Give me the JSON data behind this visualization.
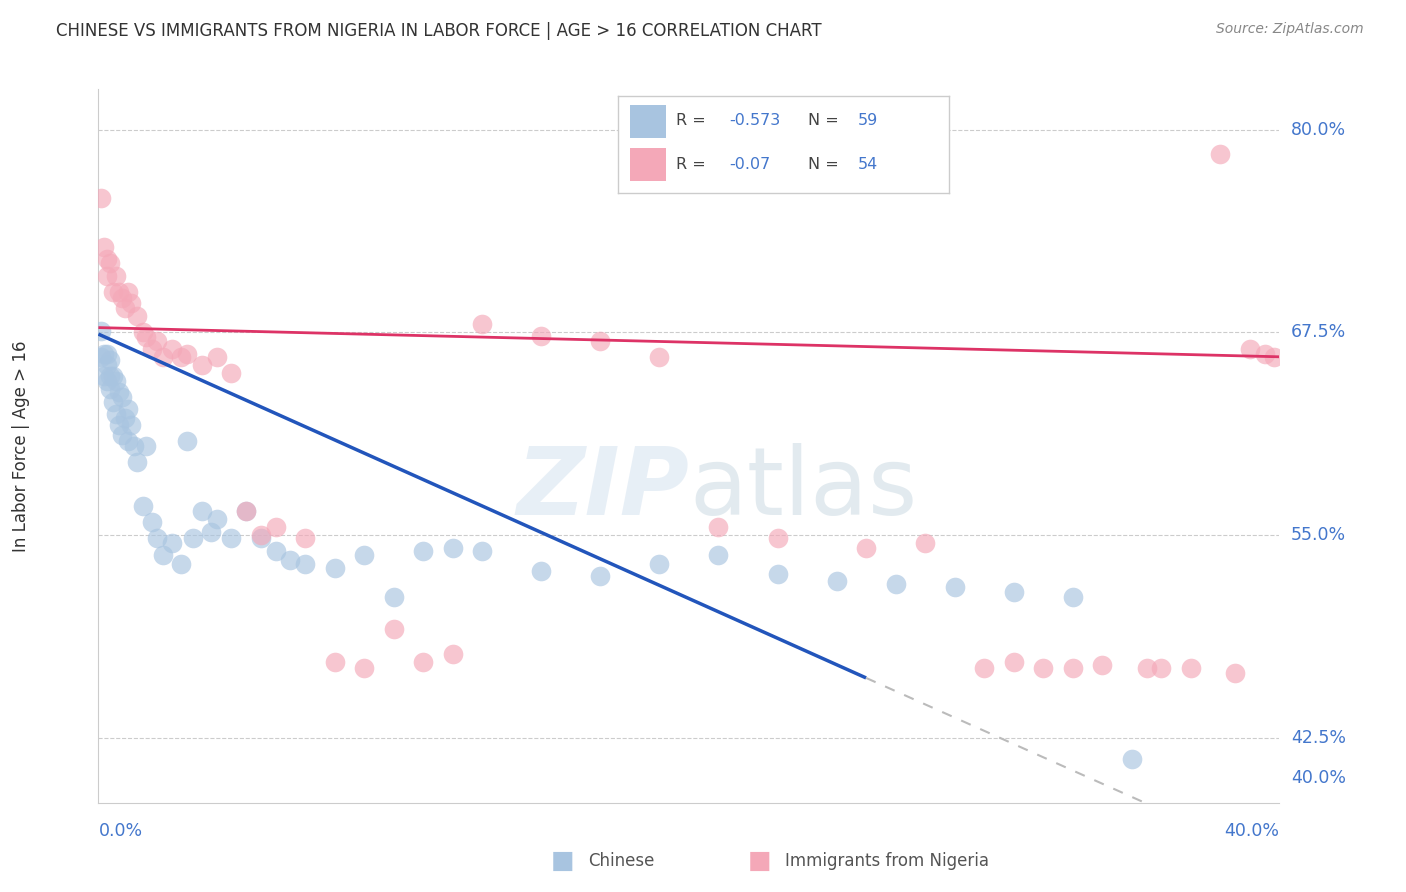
{
  "title": "CHINESE VS IMMIGRANTS FROM NIGERIA IN LABOR FORCE | AGE > 16 CORRELATION CHART",
  "source": "Source: ZipAtlas.com",
  "ylabel": "In Labor Force | Age > 16",
  "xmin": 0.0,
  "xmax": 0.4,
  "ymin": 0.385,
  "ymax": 0.825,
  "ytick_vals": [
    0.8,
    0.675,
    0.55,
    0.425,
    0.4
  ],
  "ytick_labels": [
    "80.0%",
    "67.5%",
    "55.0%",
    "42.5%",
    "40.0%"
  ],
  "chinese_R": -0.573,
  "chinese_N": 59,
  "nigeria_R": -0.07,
  "nigeria_N": 54,
  "chinese_color": "#a8c4e0",
  "nigeria_color": "#f4a8b8",
  "chinese_line_color": "#2255bb",
  "nigeria_line_color": "#dd3366",
  "dashed_color": "#bbbbbb",
  "blue_line_end_x": 0.26,
  "chinese_x": [
    0.001,
    0.001,
    0.002,
    0.002,
    0.003,
    0.003,
    0.003,
    0.004,
    0.004,
    0.004,
    0.005,
    0.005,
    0.006,
    0.006,
    0.007,
    0.007,
    0.008,
    0.008,
    0.009,
    0.01,
    0.01,
    0.011,
    0.012,
    0.013,
    0.015,
    0.016,
    0.018,
    0.02,
    0.022,
    0.025,
    0.028,
    0.03,
    0.032,
    0.035,
    0.038,
    0.04,
    0.045,
    0.05,
    0.055,
    0.06,
    0.065,
    0.07,
    0.08,
    0.09,
    0.1,
    0.11,
    0.12,
    0.13,
    0.15,
    0.17,
    0.19,
    0.21,
    0.23,
    0.25,
    0.27,
    0.29,
    0.31,
    0.33,
    0.35
  ],
  "chinese_y": [
    0.676,
    0.66,
    0.662,
    0.648,
    0.662,
    0.655,
    0.645,
    0.658,
    0.648,
    0.64,
    0.648,
    0.632,
    0.645,
    0.625,
    0.638,
    0.618,
    0.635,
    0.612,
    0.622,
    0.628,
    0.608,
    0.618,
    0.605,
    0.595,
    0.568,
    0.605,
    0.558,
    0.548,
    0.538,
    0.545,
    0.532,
    0.608,
    0.548,
    0.565,
    0.552,
    0.56,
    0.548,
    0.565,
    0.548,
    0.54,
    0.535,
    0.532,
    0.53,
    0.538,
    0.512,
    0.54,
    0.542,
    0.54,
    0.528,
    0.525,
    0.532,
    0.538,
    0.526,
    0.522,
    0.52,
    0.518,
    0.515,
    0.512,
    0.412
  ],
  "nigeria_x": [
    0.001,
    0.002,
    0.003,
    0.003,
    0.004,
    0.005,
    0.006,
    0.007,
    0.008,
    0.009,
    0.01,
    0.011,
    0.013,
    0.015,
    0.016,
    0.018,
    0.02,
    0.022,
    0.025,
    0.028,
    0.03,
    0.035,
    0.04,
    0.045,
    0.05,
    0.055,
    0.06,
    0.07,
    0.08,
    0.09,
    0.1,
    0.11,
    0.12,
    0.13,
    0.15,
    0.17,
    0.19,
    0.21,
    0.23,
    0.26,
    0.28,
    0.3,
    0.31,
    0.32,
    0.34,
    0.36,
    0.38,
    0.39,
    0.395,
    0.398,
    0.355,
    0.37,
    0.385,
    0.33
  ],
  "nigeria_y": [
    0.758,
    0.728,
    0.72,
    0.71,
    0.718,
    0.7,
    0.71,
    0.7,
    0.696,
    0.69,
    0.7,
    0.693,
    0.685,
    0.675,
    0.672,
    0.665,
    0.67,
    0.66,
    0.665,
    0.66,
    0.662,
    0.655,
    0.66,
    0.65,
    0.565,
    0.55,
    0.555,
    0.548,
    0.472,
    0.468,
    0.492,
    0.472,
    0.477,
    0.68,
    0.673,
    0.67,
    0.66,
    0.555,
    0.548,
    0.542,
    0.545,
    0.468,
    0.472,
    0.468,
    0.47,
    0.468,
    0.785,
    0.665,
    0.662,
    0.66,
    0.468,
    0.468,
    0.465,
    0.468
  ],
  "watermark_text": "ZIPatlas",
  "bg_color": "#ffffff",
  "grid_color": "#cccccc",
  "axis_label_color": "#4477cc",
  "title_color": "#333333",
  "source_color": "#888888"
}
